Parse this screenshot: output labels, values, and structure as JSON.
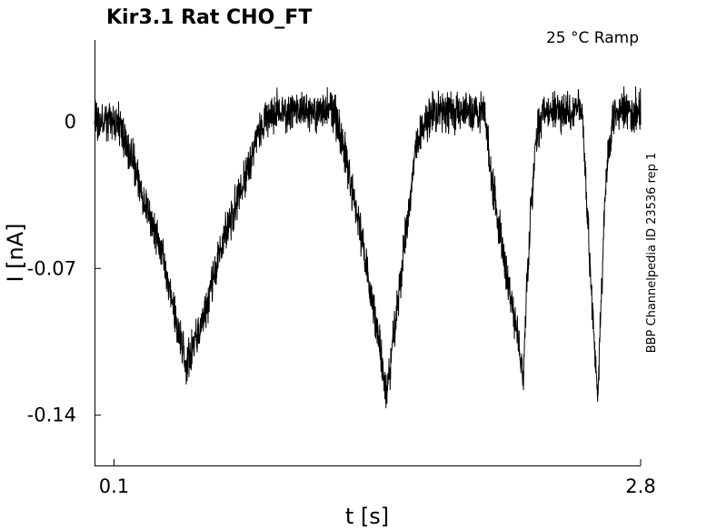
{
  "chart_data": {
    "type": "line",
    "title": "Kir3.1  Rat  CHO_FT",
    "annotation": "25 °C  Ramp",
    "side_label": "BBP Channelpedia ID 23536 rep 1",
    "xlabel": "t [s]",
    "ylabel": "I [nA]",
    "xlim": [
      0.0,
      2.8
    ],
    "ylim": [
      -0.164,
      0.039
    ],
    "x_ticks": [
      0.1,
      2.8
    ],
    "x_tick_labels": [
      "0.1",
      "2.8"
    ],
    "y_ticks": [
      0,
      -0.07,
      -0.14
    ],
    "y_tick_labels": [
      "0",
      "-0.07",
      "-0.14"
    ],
    "grid": false,
    "color": "#000000",
    "noise_amplitude_nA": 0.008,
    "series": [
      {
        "x": [
          0.0,
          0.07,
          0.12,
          0.2,
          0.35,
          0.44,
          0.47,
          0.5,
          0.57,
          0.68,
          0.78,
          0.86,
          0.9,
          1.23,
          1.27,
          1.35,
          1.46,
          1.5,
          1.55,
          1.65,
          1.73,
          1.77,
          1.81,
          2.0,
          2.04,
          2.11,
          2.19,
          2.2,
          2.22,
          2.26,
          2.3,
          2.42,
          2.46,
          2.5,
          2.54,
          2.58,
          2.62,
          2.66,
          2.8
        ],
        "y": [
          0.0,
          0.0,
          0.0,
          -0.02,
          -0.065,
          -0.105,
          -0.115,
          -0.11,
          -0.09,
          -0.05,
          -0.025,
          0.0,
          0.005,
          0.005,
          -0.01,
          -0.045,
          -0.105,
          -0.13,
          -0.09,
          -0.01,
          0.005,
          0.005,
          0.005,
          0.005,
          -0.03,
          -0.07,
          -0.115,
          -0.12,
          -0.07,
          -0.01,
          0.005,
          0.005,
          0.005,
          0.005,
          -0.07,
          -0.13,
          -0.03,
          0.005,
          0.005
        ]
      }
    ]
  }
}
